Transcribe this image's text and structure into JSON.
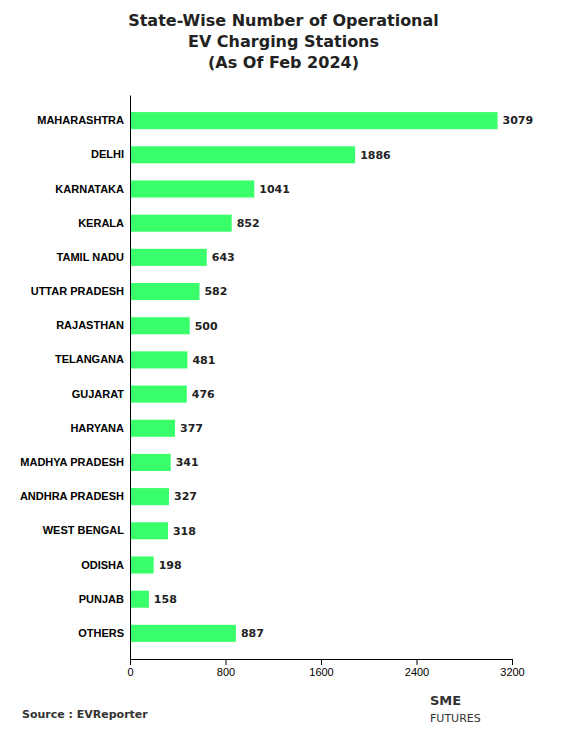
{
  "chart_data": {
    "type": "bar",
    "orientation": "horizontal",
    "title": "State-Wise Number of Operational\nEV Charging Stations\n(As Of Feb 2024)",
    "categories": [
      "MAHARASHTRA",
      "DELHI",
      "KARNATAKA",
      "KERALA",
      "TAMIL NADU",
      "UTTAR PRADESH",
      "RAJASTHAN",
      "TELANGANA",
      "GUJARAT",
      "HARYANA",
      "MADHYA PRADESH",
      "ANDHRA PRADESH",
      "WEST BENGAL",
      "ODISHA",
      "PUNJAB",
      "OTHERS"
    ],
    "values": [
      3079,
      1886,
      1041,
      852,
      643,
      582,
      500,
      481,
      476,
      377,
      341,
      327,
      318,
      198,
      158,
      887
    ],
    "color": "#39ff6a",
    "xlim": [
      0,
      3200
    ],
    "xticks": [
      0,
      800,
      1600,
      2400,
      3200
    ],
    "grid": false,
    "data_labels": true,
    "annotations": [
      "Source : EVReporter",
      "SME",
      "FUTURES"
    ]
  }
}
